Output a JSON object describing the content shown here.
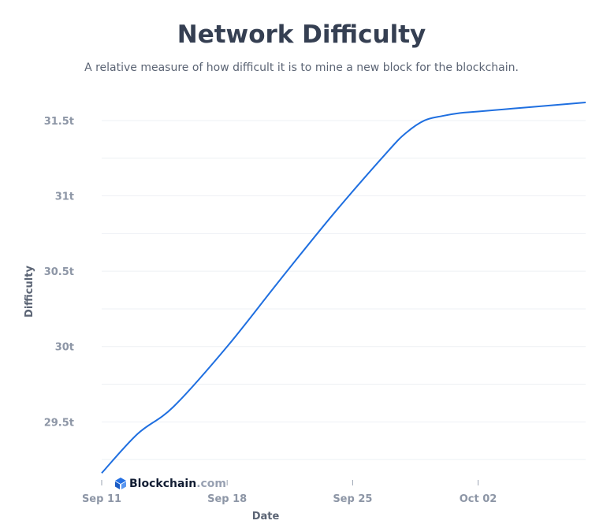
{
  "header": {
    "title": "Network Difficulty",
    "subtitle": "A relative measure of how difficult it is to mine a new block for the blockchain."
  },
  "brand": {
    "name": "Blockchain",
    "suffix": ".com",
    "icon": "blockchain-logo-icon",
    "color": "#2470e3"
  },
  "colors": {
    "line": "#1f6fe0",
    "grid": "#eef0f4"
  },
  "chart_data": {
    "type": "line",
    "title": "Network Difficulty",
    "subtitle": "A relative measure of how difficult it is to mine a new block for the blockchain.",
    "xlabel": "Date",
    "ylabel": "Difficulty",
    "x_ticks": [
      "Sep 11",
      "Sep 18",
      "Sep 25",
      "Oct 02"
    ],
    "y_ticks": [
      "29.5t",
      "30t",
      "30.5t",
      "31t",
      "31.5t"
    ],
    "y_tick_values": [
      29.5,
      30,
      30.5,
      31,
      31.5
    ],
    "ylim": [
      29.12,
      31.62
    ],
    "xlim": [
      "2023-09-11",
      "2023-10-08"
    ],
    "grid": true,
    "series": [
      {
        "name": "",
        "x": [
          "2023-09-11",
          "2023-09-13",
          "2023-09-15",
          "2023-09-18",
          "2023-09-21",
          "2023-09-24",
          "2023-09-27",
          "2023-09-28",
          "2023-09-29",
          "2023-09-30",
          "2023-10-01",
          "2023-10-02",
          "2023-10-05",
          "2023-10-08"
        ],
        "y": [
          29.16,
          29.42,
          29.6,
          30.0,
          30.45,
          30.89,
          31.3,
          31.42,
          31.5,
          31.53,
          31.55,
          31.56,
          31.59,
          31.62
        ]
      }
    ]
  }
}
